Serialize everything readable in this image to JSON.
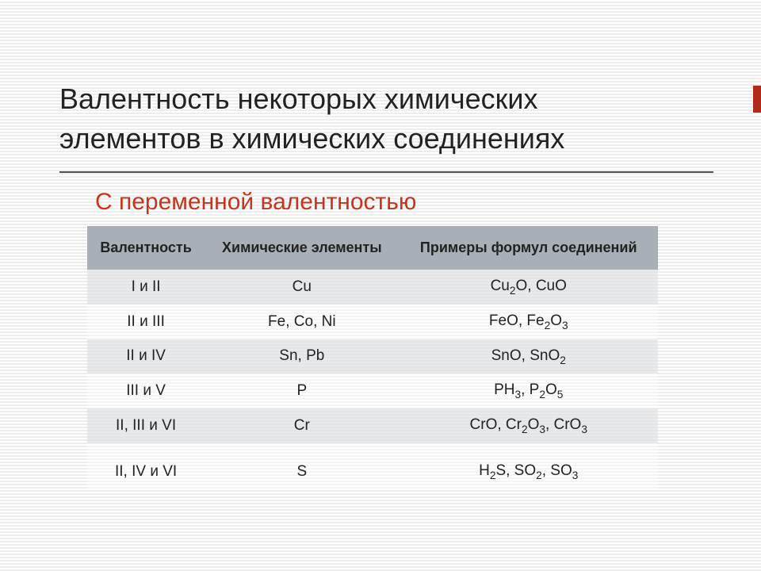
{
  "title_line1": "Валентность некоторых химических",
  "title_line2": "элементов в химических соединениях",
  "subtitle": "С переменной валентностью",
  "table": {
    "columns": [
      "Валентность",
      "Химические элементы",
      "Примеры формул соединений"
    ],
    "rows": [
      {
        "valence": "I  и II",
        "elements": "Cu",
        "examples_html": "Cu<span class='sub'>2</span>O, CuO"
      },
      {
        "valence": "II и III",
        "elements": "Fe, Co, Ni",
        "examples_html": "FeO, Fe<span class='sub'>2</span>O<span class='sub'>3</span>"
      },
      {
        "valence": "II и IV",
        "elements": "Sn, Pb",
        "examples_html": "SnO, SnO<span class='sub'>2</span>"
      },
      {
        "valence": "III и  V",
        "elements": "P",
        "examples_html": "PH<span class='sub'>3</span>, P<span class='sub'>2</span>O<span class='sub'>5</span>"
      },
      {
        "valence": "II, III  и VI",
        "elements": "Cr",
        "examples_html": "CrO, Cr<span class='sub'>2</span>O<span class='sub'>3</span>, CrO<span class='sub'>3</span>"
      },
      {
        "valence": "II, IV и  VI",
        "elements": "S",
        "examples_html": "H<span class='sub'>2</span>S, SO<span class='sub'>2</span>, SO<span class='sub'>3</span>"
      }
    ],
    "header_bg": "#a9afb6",
    "row_odd_bg": "rgba(220,222,226,0.65)",
    "row_even_bg": "rgba(255,255,255,0.4)",
    "font_color": "#222222"
  },
  "colors": {
    "title": "#222222",
    "subtitle": "#c3351c",
    "underline": "#555555",
    "background_stripe_light": "#ffffff",
    "background_stripe_dark": "#ededed",
    "edge_marker": "#b02a1a"
  },
  "typography": {
    "title_fontsize": 36,
    "subtitle_fontsize": 30,
    "th_fontsize": 18,
    "td_fontsize": 19,
    "font_family": "Arial"
  }
}
